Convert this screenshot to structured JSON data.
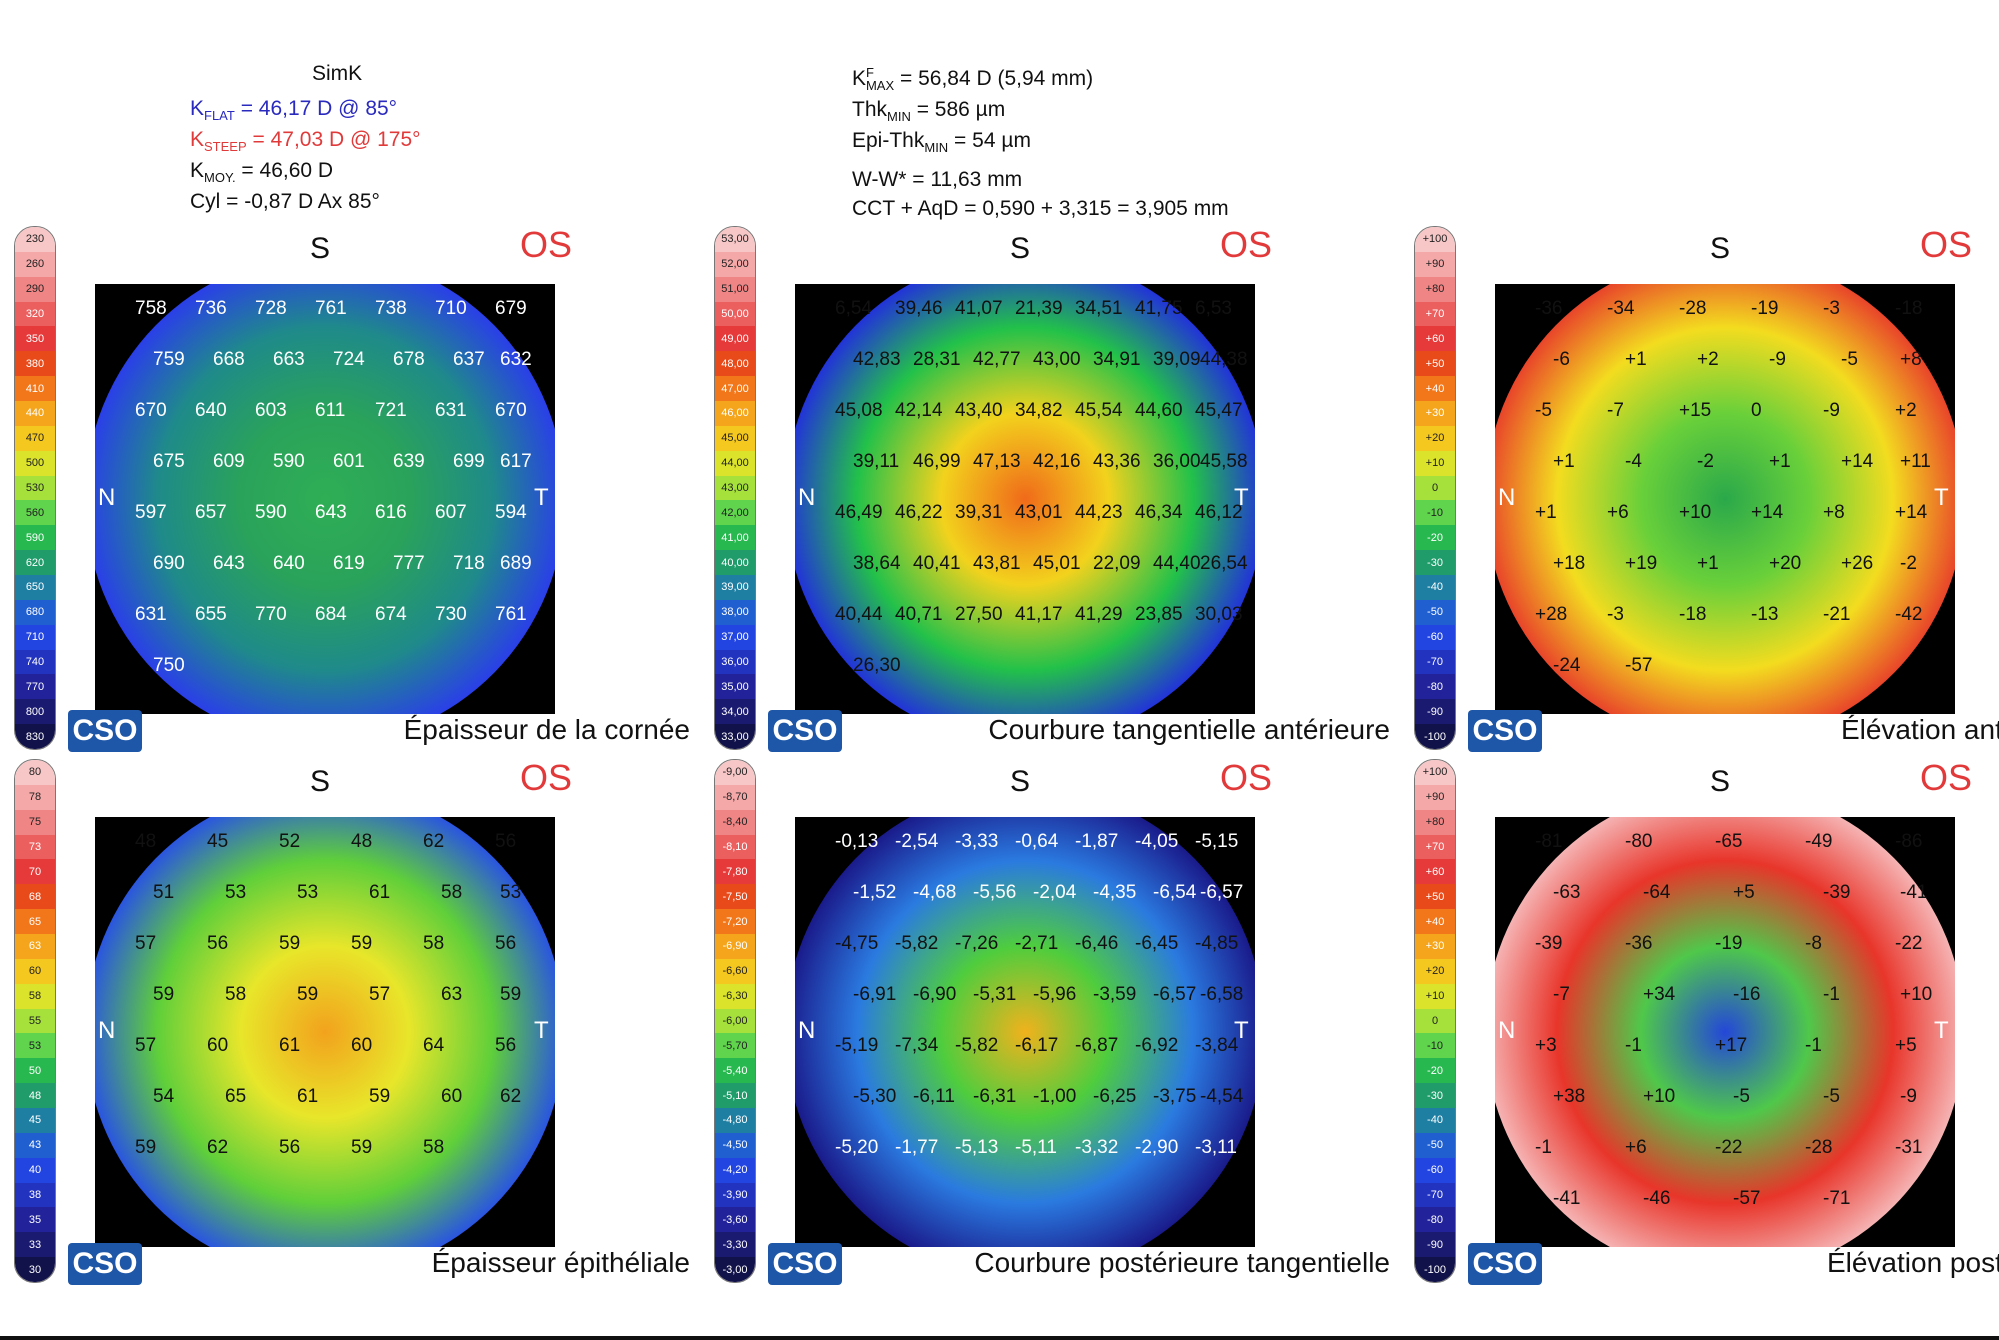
{
  "header": {
    "simk": "SimK",
    "kflat_k": "K",
    "kflat_sub": "FLAT",
    "kflat_val": "= 46,17 D @ 85°",
    "ksteep_k": "K",
    "ksteep_sub": "STEEP",
    "ksteep_val": "= 47,03 D @ 175°",
    "kmoy_k": "K",
    "kmoy_sub": "MOY.",
    "kmoy_val": "= 46,60 D",
    "cyl": "Cyl = -0,87 D Ax 85°",
    "kmax_k": "K",
    "kmax_sup": "F",
    "kmax_sub": "MAX",
    "kmax_val": "= 56,84 D (5,94 mm)",
    "thk_k": "Thk",
    "thk_sub": "MIN",
    "thk_val": "= 586 µm",
    "epi_k": "Epi-Thk",
    "epi_sub": "MIN",
    "epi_val": "= 54 µm",
    "ww": "W-W* = 11,63 mm",
    "cct": "CCT + AqD = 0,590 + 3,315 = 3,905 mm"
  },
  "panels": [
    {
      "title": "Épaisseur de la cornée",
      "eye": "OS",
      "superior": "S",
      "nasal": "N",
      "temporal": "T",
      "logo": "CSO",
      "scale": [
        "230",
        "260",
        "290",
        "320",
        "350",
        "380",
        "410",
        "440",
        "470",
        "500",
        "530",
        "560",
        "590",
        "620",
        "650",
        "680",
        "710",
        "740",
        "770",
        "800",
        "830"
      ]
    },
    {
      "title": "Courbure tangentielle antérieure",
      "eye": "OS",
      "superior": "S",
      "nasal": "N",
      "temporal": "T",
      "logo": "CSO",
      "scale": [
        "53,00",
        "52,00",
        "51,00",
        "50,00",
        "49,00",
        "48,00",
        "47,00",
        "46,00",
        "45,00",
        "44,00",
        "43,00",
        "42,00",
        "41,00",
        "40,00",
        "39,00",
        "38,00",
        "37,00",
        "36,00",
        "35,00",
        "34,00",
        "33,00"
      ]
    },
    {
      "title": "Élévation antérieure",
      "eye": "OS",
      "superior": "S",
      "nasal": "N",
      "temporal": "T",
      "logo": "CSO",
      "scale": [
        "+100",
        "+90",
        "+80",
        "+70",
        "+60",
        "+50",
        "+40",
        "+30",
        "+20",
        "+10",
        "0",
        "-10",
        "-20",
        "-30",
        "-40",
        "-50",
        "-60",
        "-70",
        "-80",
        "-90",
        "-100"
      ]
    },
    {
      "title": "Épaisseur épithéliale",
      "eye": "OS",
      "superior": "S",
      "nasal": "N",
      "temporal": "T",
      "logo": "CSO",
      "scale": [
        "80",
        "78",
        "75",
        "73",
        "70",
        "68",
        "65",
        "63",
        "60",
        "58",
        "55",
        "53",
        "50",
        "48",
        "45",
        "43",
        "40",
        "38",
        "35",
        "33",
        "30"
      ]
    },
    {
      "title": "Courbure postérieure tangentielle",
      "eye": "OS",
      "superior": "S",
      "nasal": "N",
      "temporal": "T",
      "logo": "CSO",
      "scale": [
        "-9,00",
        "-8,70",
        "-8,40",
        "-8,10",
        "-7,80",
        "-7,50",
        "-7,20",
        "-6,90",
        "-6,60",
        "-6,30",
        "-6,00",
        "-5,70",
        "-5,40",
        "-5,10",
        "-4,80",
        "-4,50",
        "-4,20",
        "-3,90",
        "-3,60",
        "-3,30",
        "-3,00"
      ]
    },
    {
      "title": "Élévation postérieure",
      "eye": "OS",
      "superior": "S",
      "nasal": "N",
      "temporal": "T",
      "logo": "CSO",
      "scale": [
        "+100",
        "+90",
        "+80",
        "+70",
        "+60",
        "+50",
        "+40",
        "+30",
        "+20",
        "+10",
        "0",
        "-10",
        "-20",
        "-30",
        "-40",
        "-50",
        "-60",
        "-70",
        "-80",
        "-90",
        "-100"
      ]
    }
  ],
  "map_values": [
    [
      "758",
      "736",
      "728",
      "761",
      "738",
      "710",
      "679",
      "759",
      "668",
      "663",
      "724",
      "678",
      "637",
      "632",
      "670",
      "640",
      "603",
      "611",
      "721",
      "631",
      "670",
      "675",
      "609",
      "590",
      "601",
      "639",
      "699",
      "617",
      "597",
      "657",
      "590",
      "643",
      "616",
      "607",
      "594",
      "690",
      "643",
      "640",
      "619",
      "777",
      "718",
      "689",
      "631",
      "655",
      "770",
      "684",
      "674",
      "730",
      "761",
      "750"
    ],
    [
      "6,54",
      "39,46",
      "41,07",
      "21,39",
      "34,51",
      "41,75",
      "6,53",
      "42,83",
      "28,31",
      "42,77",
      "43,00",
      "34,91",
      "39,09",
      "44,38",
      "45,08",
      "42,14",
      "43,40",
      "34,82",
      "45,54",
      "44,60",
      "45,47",
      "39,11",
      "46,99",
      "47,13",
      "42,16",
      "43,36",
      "36,00",
      "45,58",
      "46,49",
      "46,22",
      "39,31",
      "43,01",
      "44,23",
      "46,34",
      "46,12",
      "38,64",
      "40,41",
      "43,81",
      "45,01",
      "22,09",
      "44,40",
      "26,54",
      "40,44",
      "40,71",
      "27,50",
      "41,17",
      "41,29",
      "23,85",
      "30,03",
      "26,30"
    ],
    [
      "-36",
      "-34",
      "-28",
      "-19",
      "-3",
      "-18",
      "-6",
      "+1",
      "+2",
      "-9",
      "-5",
      "+8",
      "-5",
      "-7",
      "+15",
      "0",
      "-9",
      "+2",
      "+1",
      "-4",
      "-2",
      "+1",
      "+14",
      "+11",
      "+1",
      "+6",
      "+10",
      "+14",
      "+8",
      "+14",
      "+18",
      "+19",
      "+1",
      "+20",
      "+26",
      "-2",
      "+28",
      "-3",
      "-18",
      "-13",
      "-21",
      "-42",
      "-24",
      "-57"
    ],
    [
      "48",
      "45",
      "52",
      "48",
      "62",
      "56",
      "51",
      "53",
      "53",
      "61",
      "58",
      "53",
      "57",
      "56",
      "59",
      "59",
      "58",
      "56",
      "59",
      "58",
      "59",
      "57",
      "63",
      "59",
      "57",
      "60",
      "61",
      "60",
      "64",
      "56",
      "54",
      "65",
      "61",
      "59",
      "60",
      "62",
      "59",
      "62",
      "56",
      "59",
      "58"
    ],
    [
      "-0,13",
      "-2,54",
      "-3,33",
      "-0,64",
      "-1,87",
      "-4,05",
      "-5,15",
      "-1,52",
      "-4,68",
      "-5,56",
      "-2,04",
      "-4,35",
      "-6,54",
      "-6,57",
      "-4,75",
      "-5,82",
      "-7,26",
      "-2,71",
      "-6,46",
      "-6,45",
      "-4,85",
      "-6,91",
      "-6,90",
      "-5,31",
      "-5,96",
      "-3,59",
      "-6,57",
      "-6,58",
      "-5,19",
      "-7,34",
      "-5,82",
      "-6,17",
      "-6,87",
      "-6,92",
      "-3,84",
      "-5,30",
      "-6,11",
      "-6,31",
      "-1,00",
      "-6,25",
      "-3,75",
      "-4,54",
      "-5,20",
      "-1,77",
      "-5,13",
      "-5,11",
      "-3,32",
      "-2,90",
      "-3,11"
    ],
    [
      "-81",
      "-80",
      "-65",
      "-49",
      "-86",
      "-63",
      "-64",
      "+5",
      "-39",
      "-41",
      "-39",
      "-36",
      "-19",
      "-8",
      "-22",
      "-7",
      "+34",
      "-16",
      "-1",
      "+10",
      "+3",
      "-1",
      "+17",
      "-1",
      "+5",
      "+38",
      "+10",
      "-5",
      "-5",
      "-9",
      "-1",
      "+6",
      "-22",
      "-28",
      "-31",
      "-41",
      "-46",
      "-57",
      "-71"
    ]
  ]
}
